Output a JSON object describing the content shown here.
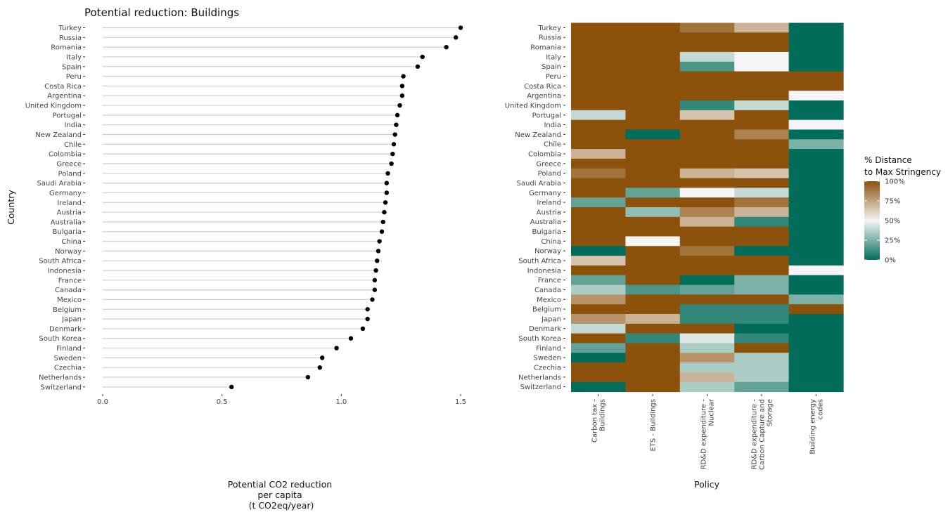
{
  "colors": {
    "stem": "#cfcfcf",
    "dot": "#000000",
    "tick_mark": "#333333",
    "scale_low": "#016c59",
    "scale_mid": "#f5f5f5",
    "scale_high": "#8c510a"
  },
  "chart_data": [
    {
      "type": "lollipop",
      "title": "Potential reduction: Buildings",
      "xlabel": [
        "Potential CO2 reduction",
        "per capita",
        "(t CO2eq/year)"
      ],
      "ylabel": "Country",
      "xlim": [
        0,
        1.5
      ],
      "x_ticks": [
        "0.0",
        "0.5",
        "1.0",
        "1.5"
      ],
      "grid": false,
      "categories": [
        "Turkey",
        "Russia",
        "Romania",
        "Italy",
        "Spain",
        "Peru",
        "Costa Rica",
        "Argentina",
        "United Kingdom",
        "Portugal",
        "India",
        "New Zealand",
        "Chile",
        "Colombia",
        "Greece",
        "Poland",
        "Saudi Arabia",
        "Germany",
        "Ireland",
        "Austria",
        "Australia",
        "Bulgaria",
        "China",
        "Norway",
        "South Africa",
        "Indonesia",
        "France",
        "Canada",
        "Mexico",
        "Belgium",
        "Japan",
        "Denmark",
        "South Korea",
        "Finland",
        "Sweden",
        "Czechia",
        "Netherlands",
        "Switzerland"
      ],
      "values": [
        1.5,
        1.48,
        1.44,
        1.34,
        1.32,
        1.26,
        1.255,
        1.255,
        1.245,
        1.235,
        1.23,
        1.225,
        1.22,
        1.215,
        1.21,
        1.195,
        1.19,
        1.19,
        1.185,
        1.18,
        1.175,
        1.17,
        1.16,
        1.155,
        1.15,
        1.145,
        1.14,
        1.14,
        1.13,
        1.11,
        1.11,
        1.09,
        1.04,
        0.98,
        0.92,
        0.91,
        0.86,
        0.54
      ]
    },
    {
      "type": "heatmap",
      "xlabel": "Policy",
      "ylabel": "",
      "x_categories": [
        "Carbon tax - Buildings",
        "ETS - Buildings",
        "RD&D expenditure - Nuclear",
        "RD&D expenditure - Carbon Capture and Storage",
        "Building energy codes"
      ],
      "x_tick_lines": [
        [
          "Carbon tax -",
          "Buildings"
        ],
        [
          "ETS - Buildings"
        ],
        [
          "RD&D expenditure -",
          "Nuclear"
        ],
        [
          "RD&D expenditure -",
          "Carbon Capture and",
          "Storage"
        ],
        [
          "Building energy",
          "codes"
        ]
      ],
      "y_categories": [
        "Turkey",
        "Russia",
        "Romania",
        "Italy",
        "Spain",
        "Peru",
        "Costa Rica",
        "Argentina",
        "United Kingdom",
        "Portugal",
        "India",
        "New Zealand",
        "Chile",
        "Colombia",
        "Greece",
        "Poland",
        "Saudi Arabia",
        "Germany",
        "Ireland",
        "Austria",
        "Australia",
        "Bulgaria",
        "China",
        "Norway",
        "South Africa",
        "Indonesia",
        "France",
        "Canada",
        "Mexico",
        "Belgium",
        "Japan",
        "Denmark",
        "South Korea",
        "Finland",
        "Sweden",
        "Czechia",
        "Netherlands",
        "Switzerland"
      ],
      "legend": {
        "title": [
          "% Distance",
          "to Max Stringency"
        ],
        "position": "right",
        "labels": [
          "100%",
          "75%",
          "50%",
          "25%",
          "0%"
        ]
      },
      "values_percent": [
        [
          100,
          100,
          90,
          70,
          0
        ],
        [
          100,
          100,
          100,
          100,
          0
        ],
        [
          100,
          100,
          100,
          100,
          0
        ],
        [
          100,
          100,
          40,
          50,
          0
        ],
        [
          100,
          100,
          15,
          50,
          0
        ],
        [
          100,
          100,
          100,
          100,
          100
        ],
        [
          100,
          100,
          100,
          100,
          100
        ],
        [
          100,
          100,
          100,
          100,
          50
        ],
        [
          100,
          100,
          10,
          40,
          0
        ],
        [
          40,
          100,
          65,
          100,
          0
        ],
        [
          100,
          100,
          100,
          100,
          50
        ],
        [
          100,
          0,
          100,
          85,
          0
        ],
        [
          100,
          100,
          100,
          100,
          25
        ],
        [
          70,
          100,
          100,
          100,
          0
        ],
        [
          100,
          100,
          100,
          100,
          0
        ],
        [
          90,
          100,
          70,
          65,
          0
        ],
        [
          100,
          100,
          100,
          100,
          0
        ],
        [
          100,
          20,
          50,
          40,
          0
        ],
        [
          20,
          100,
          100,
          90,
          0
        ],
        [
          100,
          30,
          85,
          70,
          0
        ],
        [
          100,
          100,
          70,
          10,
          0
        ],
        [
          100,
          100,
          100,
          100,
          0
        ],
        [
          100,
          50,
          100,
          100,
          0
        ],
        [
          0,
          100,
          90,
          0,
          0
        ],
        [
          65,
          100,
          100,
          100,
          0
        ],
        [
          100,
          100,
          100,
          100,
          50
        ],
        [
          20,
          100,
          0,
          25,
          0
        ],
        [
          35,
          15,
          20,
          25,
          0
        ],
        [
          80,
          100,
          100,
          100,
          25
        ],
        [
          100,
          100,
          10,
          10,
          100
        ],
        [
          80,
          70,
          10,
          10,
          0
        ],
        [
          40,
          100,
          100,
          0,
          0
        ],
        [
          100,
          10,
          45,
          10,
          0
        ],
        [
          20,
          100,
          35,
          100,
          0
        ],
        [
          0,
          100,
          80,
          35,
          0
        ],
        [
          100,
          100,
          35,
          35,
          0
        ],
        [
          100,
          100,
          70,
          35,
          0
        ],
        [
          0,
          100,
          35,
          20,
          0
        ]
      ]
    }
  ]
}
